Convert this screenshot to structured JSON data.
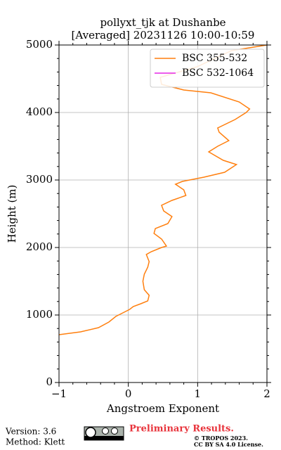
{
  "chart_data": {
    "type": "line",
    "title": "pollyxt_tjk at Dushanbe",
    "subtitle": "[Averaged] 20231126 10:00-10:59",
    "xlabel": "Angstroem Exponent",
    "ylabel": "Height (m)",
    "xlim": [
      -1,
      2
    ],
    "ylim": [
      0,
      5000
    ],
    "xticks": [
      {
        "value": -1,
        "label": "−1"
      },
      0,
      1,
      2
    ],
    "yticks": [
      0,
      1000,
      2000,
      3000,
      4000,
      5000
    ],
    "grid": true,
    "legend": "upper right",
    "series": [
      {
        "name": "BSC 355-532",
        "color": "#ff7f0e",
        "x": [
          -1.0,
          -0.69,
          -0.43,
          -0.28,
          -0.18,
          -0.08,
          0.02,
          0.07,
          0.18,
          0.28,
          0.3,
          0.23,
          0.21,
          0.23,
          0.28,
          0.3,
          0.26,
          0.33,
          0.48,
          0.55,
          0.48,
          0.37,
          0.39,
          0.57,
          0.63,
          0.51,
          0.48,
          0.63,
          0.83,
          0.8,
          0.68,
          0.78,
          1.09,
          1.39,
          1.56,
          1.37,
          1.16,
          1.29,
          1.45,
          1.31,
          1.29,
          1.54,
          1.7,
          1.75,
          1.6,
          1.19,
          0.8,
          0.48,
          0.46,
          0.99,
          1.49,
          2.0
        ],
        "y": [
          708,
          750,
          812,
          896,
          979,
          1031,
          1083,
          1125,
          1167,
          1208,
          1292,
          1375,
          1500,
          1604,
          1708,
          1792,
          1896,
          1938,
          2000,
          2021,
          2125,
          2208,
          2281,
          2354,
          2458,
          2542,
          2625,
          2698,
          2771,
          2854,
          2938,
          2979,
          3042,
          3115,
          3229,
          3292,
          3417,
          3500,
          3583,
          3708,
          3771,
          3896,
          4000,
          4052,
          4156,
          4292,
          4333,
          4417,
          4521,
          4677,
          4917,
          5000
        ]
      },
      {
        "name": "BSC 532-1064",
        "color": "#e526e5",
        "x": [],
        "y": []
      }
    ]
  },
  "footer": {
    "version": "Version: 3.6",
    "method": "Method: Klett",
    "status": "Preliminary Results.",
    "copyright": "© TROPOS 2023.",
    "license": "CC BY SA 4.0 License."
  }
}
